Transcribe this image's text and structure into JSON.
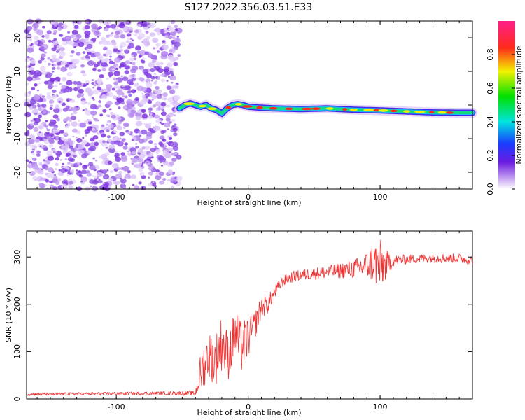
{
  "title": "S127.2022.356.03.51.E33",
  "chart_data": [
    {
      "type": "heatmap",
      "xlabel": "Height of straight line (km)",
      "ylabel": "Frequency (Hz)",
      "xlim": [
        -168,
        170
      ],
      "ylim": [
        -25,
        25
      ],
      "xticks": [
        "-100",
        "0",
        "100"
      ],
      "xtick_values": [
        -100,
        0,
        100
      ],
      "yticks": [
        "-20",
        "-10",
        "0",
        "10",
        "20"
      ],
      "ytick_values": [
        -20,
        -10,
        0,
        10,
        20
      ],
      "noise_region_x": [
        -168,
        -52
      ],
      "signal_start_x": -52,
      "carrier_path": {
        "x": [
          -52,
          -48,
          -44,
          -40,
          -36,
          -32,
          -28,
          -24,
          -20,
          -16,
          -12,
          -8,
          -4,
          0,
          10,
          20,
          40,
          60,
          80,
          100,
          120,
          140,
          160,
          170
        ],
        "freq": [
          -1,
          0,
          0.5,
          0,
          -0.5,
          0,
          -1,
          -1.5,
          -2.5,
          -1,
          0,
          0.3,
          0,
          -0.5,
          -0.8,
          -1,
          -1.2,
          -1.0,
          -1.4,
          -1.6,
          -1.9,
          -2.2,
          -2.3,
          -2.3
        ]
      },
      "colorbar": {
        "label": "Normalized spectral amplitude",
        "ticks": [
          "0.0",
          "0.2",
          "0.4",
          "0.6",
          "0.8"
        ],
        "tick_values": [
          0.0,
          0.2,
          0.4,
          0.6,
          0.8
        ],
        "range": [
          0,
          1
        ],
        "colormap": "white-purple-blue-cyan-green-yellow-red-magenta"
      }
    },
    {
      "type": "line",
      "xlabel": "Height of straight line (km)",
      "ylabel": "SNR (10 * v/v)",
      "xlim": [
        -168,
        170
      ],
      "ylim": [
        0,
        355
      ],
      "xticks": [
        "-100",
        "0",
        "100"
      ],
      "xtick_values": [
        -100,
        0,
        100
      ],
      "yticks": [
        "0",
        "100",
        "200",
        "300"
      ],
      "ytick_values": [
        0,
        100,
        200,
        300
      ],
      "color": "#ee3333",
      "series": [
        {
          "x": [
            -168,
            -120,
            -60,
            -40,
            -36,
            -30,
            -25,
            -20,
            -15,
            -10,
            -5,
            0,
            5,
            10,
            15,
            20,
            25,
            30,
            40,
            60,
            80,
            90,
            95,
            100,
            105,
            110,
            120,
            140,
            160,
            170
          ],
          "values": [
            10,
            11,
            12,
            12,
            55,
            95,
            80,
            120,
            90,
            140,
            110,
            130,
            155,
            195,
            200,
            225,
            245,
            255,
            262,
            268,
            275,
            282,
            290,
            280,
            285,
            292,
            295,
            298,
            297,
            293
          ],
          "noise_amplitude": [
            3,
            3,
            4,
            5,
            45,
            50,
            55,
            60,
            50,
            55,
            55,
            45,
            30,
            25,
            20,
            15,
            12,
            12,
            12,
            14,
            20,
            30,
            45,
            60,
            30,
            12,
            10,
            10,
            10,
            10
          ]
        }
      ]
    }
  ]
}
